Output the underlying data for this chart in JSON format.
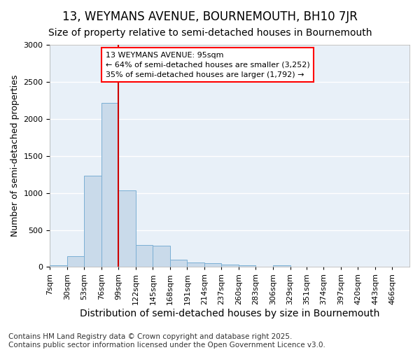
{
  "title": "13, WEYMANS AVENUE, BOURNEMOUTH, BH10 7JR",
  "subtitle": "Size of property relative to semi-detached houses in Bournemouth",
  "xlabel": "Distribution of semi-detached houses by size in Bournemouth",
  "ylabel": "Number of semi-detached properties",
  "footer_line1": "Contains HM Land Registry data © Crown copyright and database right 2025.",
  "footer_line2": "Contains public sector information licensed under the Open Government Licence v3.0.",
  "annotation_line1": "13 WEYMANS AVENUE: 95sqm",
  "annotation_line2": "← 64% of semi-detached houses are smaller (3,252)",
  "annotation_line3": "35% of semi-detached houses are larger (1,792) →",
  "bar_color": "#c9daea",
  "bar_edge_color": "#7bafd4",
  "red_line_color": "#cc0000",
  "categories": [
    "7sqm",
    "30sqm",
    "53sqm",
    "76sqm",
    "99sqm",
    "122sqm",
    "145sqm",
    "168sqm",
    "191sqm",
    "214sqm",
    "237sqm",
    "260sqm",
    "283sqm",
    "306sqm",
    "329sqm",
    "351sqm",
    "374sqm",
    "397sqm",
    "420sqm",
    "443sqm",
    "466sqm"
  ],
  "bin_left_edges": [
    7,
    30,
    53,
    76,
    99,
    122,
    145,
    168,
    191,
    214,
    237,
    260,
    283,
    306,
    329,
    351,
    374,
    397,
    420,
    443,
    466
  ],
  "bin_width": 23,
  "values": [
    20,
    150,
    1230,
    2220,
    1030,
    295,
    285,
    100,
    60,
    50,
    35,
    20,
    5,
    25,
    2,
    0,
    0,
    0,
    0,
    0,
    0
  ],
  "red_line_x": 99,
  "ylim": [
    0,
    3000
  ],
  "yticks": [
    0,
    500,
    1000,
    1500,
    2000,
    2500,
    3000
  ],
  "background_color": "#e8f0f8",
  "grid_color": "#ffffff",
  "title_fontsize": 12,
  "subtitle_fontsize": 10,
  "ylabel_fontsize": 9,
  "xlabel_fontsize": 10,
  "tick_fontsize": 8,
  "annotation_fontsize": 8,
  "footer_fontsize": 7.5
}
